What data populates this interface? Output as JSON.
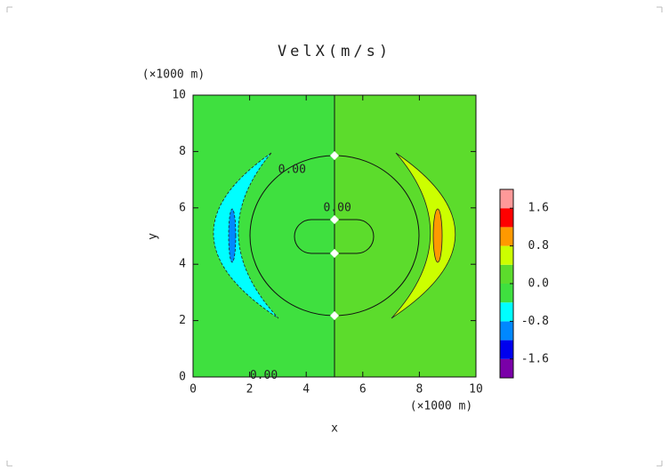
{
  "chart_data": {
    "type": "contour",
    "title": "VelX(m/s)",
    "x_label": "x",
    "y_label": "y",
    "x_unit": "(×1000 m)",
    "y_unit": "(×1000 m)",
    "xlim": [
      0,
      10
    ],
    "xticks": [
      0,
      2,
      4,
      6,
      8,
      10
    ],
    "ylim": [
      0,
      10
    ],
    "yticks": [
      0,
      2,
      4,
      6,
      8,
      10
    ],
    "colorbar": {
      "clim": [
        -2.0,
        2.0
      ],
      "colors": [
        "#7a00a8",
        "#0000ee",
        "#0088ff",
        "#00ffff",
        "#3fe03f",
        "#5cdc2c",
        "#ccff00",
        "#ff9900",
        "#ff0000",
        "#ff9999"
      ],
      "ticks": [
        -1.6,
        -0.8,
        {
          "value": 0,
          "label": "0.0"
        },
        0.8,
        1.6
      ]
    },
    "contour_labels": [
      {
        "text": "0.00",
        "x": 3.5,
        "y": 7.35
      },
      {
        "text": "0.00",
        "x": 5.1,
        "y": 6.0
      },
      {
        "text": "0.00",
        "x": 2.5,
        "y": 0.05
      }
    ]
  }
}
